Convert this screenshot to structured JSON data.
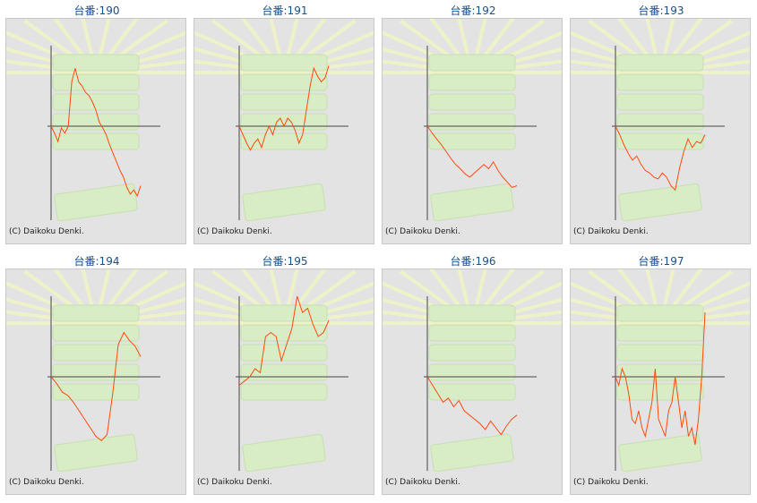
{
  "copyright": "(C) Daikoku Denki.",
  "colors": {
    "title": "#1a4f8f",
    "line": "#ff4a10",
    "axis": "#444444",
    "background": "#e3e3e3"
  },
  "panels": [
    {
      "title": "台番:190",
      "chart_data": {
        "type": "line",
        "values": [
          0.0,
          -0.08,
          -0.18,
          -0.02,
          -0.08,
          0.0,
          0.55,
          0.72,
          0.55,
          0.5,
          0.42,
          0.38,
          0.3,
          0.2,
          0.05,
          -0.02,
          -0.1,
          -0.22,
          -0.32,
          -0.42,
          -0.52,
          -0.6,
          -0.72,
          -0.8,
          -0.75,
          -0.82,
          -0.7
        ]
      }
    },
    {
      "title": "台番:191",
      "chart_data": {
        "type": "line",
        "values": [
          0.0,
          -0.1,
          -0.2,
          -0.28,
          -0.2,
          -0.15,
          -0.25,
          -0.1,
          0.0,
          -0.1,
          0.05,
          0.1,
          0.0,
          0.1,
          0.05,
          -0.05,
          -0.2,
          -0.1,
          0.2,
          0.5,
          0.72,
          0.62,
          0.55,
          0.6,
          0.75
        ]
      }
    },
    {
      "title": "台番:192",
      "chart_data": {
        "type": "line",
        "values": [
          0.0,
          -0.08,
          -0.15,
          -0.22,
          -0.3,
          -0.38,
          -0.45,
          -0.5,
          -0.56,
          -0.6,
          -0.55,
          -0.5,
          -0.45,
          -0.5,
          -0.42,
          -0.52,
          -0.6,
          -0.66,
          -0.72,
          -0.7
        ]
      }
    },
    {
      "title": "台番:193",
      "chart_data": {
        "type": "line",
        "values": [
          0.0,
          -0.1,
          -0.22,
          -0.32,
          -0.4,
          -0.35,
          -0.45,
          -0.52,
          -0.55,
          -0.6,
          -0.62,
          -0.55,
          -0.6,
          -0.7,
          -0.75,
          -0.5,
          -0.3,
          -0.15,
          -0.25,
          -0.18,
          -0.2,
          -0.1
        ]
      }
    },
    {
      "title": "台番:194",
      "chart_data": {
        "type": "line",
        "values": [
          0.0,
          -0.08,
          -0.18,
          -0.22,
          -0.3,
          -0.4,
          -0.5,
          -0.6,
          -0.7,
          -0.75,
          -0.68,
          -0.2,
          0.4,
          0.55,
          0.45,
          0.38,
          0.25
        ]
      }
    },
    {
      "title": "台番:195",
      "chart_data": {
        "type": "line",
        "values": [
          -0.1,
          -0.05,
          0.0,
          0.1,
          0.05,
          0.5,
          0.55,
          0.5,
          0.2,
          0.4,
          0.6,
          1.0,
          0.8,
          0.85,
          0.65,
          0.5,
          0.55,
          0.7
        ]
      }
    },
    {
      "title": "台番:196",
      "chart_data": {
        "type": "line",
        "values": [
          0.0,
          -0.1,
          -0.2,
          -0.3,
          -0.25,
          -0.35,
          -0.28,
          -0.4,
          -0.45,
          -0.5,
          -0.55,
          -0.62,
          -0.52,
          -0.6,
          -0.68,
          -0.58,
          -0.5,
          -0.45
        ]
      }
    },
    {
      "title": "台番:197",
      "chart_data": {
        "type": "line",
        "values": [
          0.0,
          -0.1,
          0.1,
          0.0,
          -0.2,
          -0.5,
          -0.55,
          -0.4,
          -0.6,
          -0.7,
          -0.5,
          -0.3,
          0.1,
          -0.5,
          -0.6,
          -0.7,
          -0.4,
          -0.3,
          0.0,
          -0.3,
          -0.6,
          -0.4,
          -0.7,
          -0.6,
          -0.8,
          -0.5,
          0.0,
          0.8
        ]
      }
    }
  ]
}
